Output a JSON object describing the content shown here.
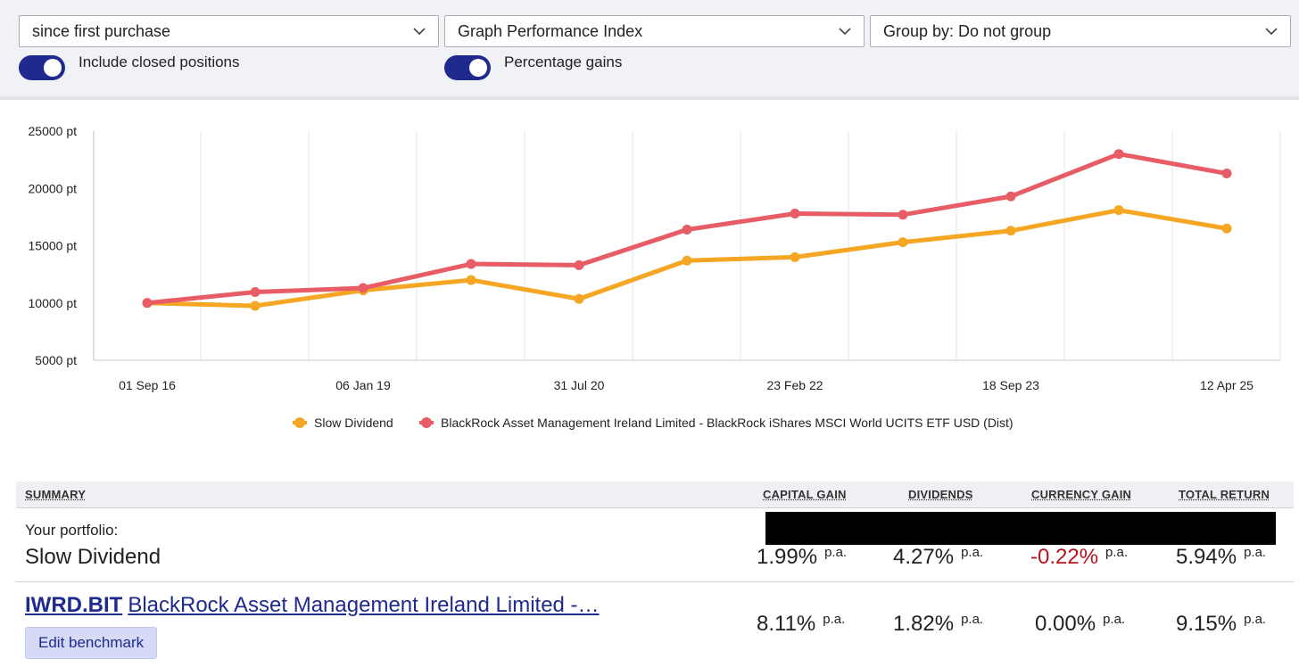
{
  "controls": {
    "period_select": "since first purchase",
    "graph_select": "Graph Performance Index",
    "group_select": "Group by: Do not group",
    "toggle_closed_label": "Include closed positions",
    "toggle_closed_on": true,
    "toggle_percent_label": "Percentage gains",
    "toggle_percent_on": true
  },
  "colors": {
    "accent": "#1f2a8f",
    "series_orange": "#f5a623",
    "series_red": "#e85c66",
    "negative": "#b3141e"
  },
  "chart_data": {
    "type": "line",
    "y_tick_labels": [
      "25000 pt",
      "20000 pt",
      "15000 pt",
      "10000 pt",
      "5000 pt"
    ],
    "y_ticks": [
      25000,
      20000,
      15000,
      10000,
      5000
    ],
    "ylim": [
      5000,
      25000
    ],
    "x_tick_labels": [
      "01 Sep 16",
      "06 Jan 19",
      "31 Jul 20",
      "23 Feb 22",
      "18 Sep 23",
      "12 Apr 25"
    ],
    "x_tick_index": [
      0,
      2,
      4,
      6,
      8,
      10
    ],
    "grid": true,
    "legend_position": "bottom",
    "series": [
      {
        "name": "Slow Dividend",
        "color": "#f5a623",
        "values": [
          10000,
          9750,
          11100,
          12000,
          10350,
          13700,
          14000,
          15300,
          16300,
          18100,
          16500
        ]
      },
      {
        "name": "BlackRock Asset Management Ireland Limited - BlackRock iShares MSCI World UCITS ETF USD (Dist)",
        "color": "#e85c66",
        "values": [
          10000,
          10950,
          11300,
          13400,
          13300,
          16400,
          17800,
          17700,
          19300,
          23000,
          21300
        ]
      }
    ]
  },
  "summary": {
    "headers": {
      "summary": "SUMMARY",
      "capital_gain": "CAPITAL GAIN",
      "dividends": "DIVIDENDS",
      "currency_gain": "CURRENCY GAIN",
      "total_return": "TOTAL RETURN"
    },
    "portfolio": {
      "label": "Your portfolio:",
      "name": "Slow Dividend",
      "capital_gain": "1.99%",
      "dividends": "4.27%",
      "currency_gain": "-0.22%",
      "total_return": "5.94%",
      "suffix": "p.a."
    },
    "benchmark": {
      "ticker": "IWRD.BIT",
      "name": "BlackRock Asset Management Ireland Limited -…",
      "capital_gain": "8.11%",
      "dividends": "1.82%",
      "currency_gain": "0.00%",
      "total_return": "9.15%",
      "suffix": "p.a.",
      "edit_button": "Edit benchmark"
    }
  }
}
